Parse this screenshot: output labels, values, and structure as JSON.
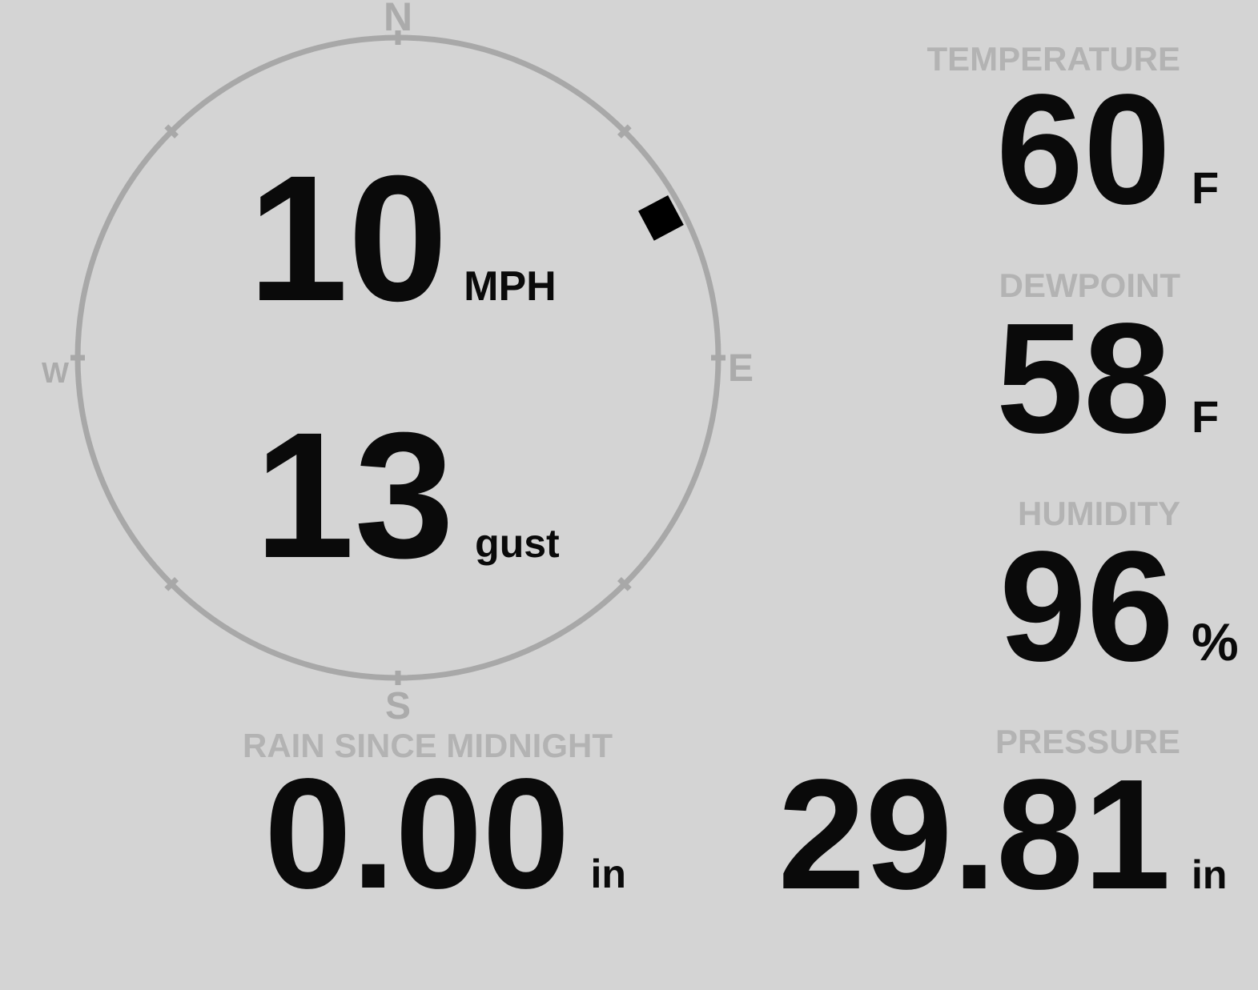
{
  "colors": {
    "background": "#d4d4d4",
    "section_label": "#b3b3b3",
    "cardinal_letter": "#ababab",
    "compass_ring": "#a8a8a8",
    "value_text": "#0a0a0a",
    "wind_marker": "#000000"
  },
  "wind_gauge": {
    "cardinals": {
      "north": "N",
      "east": "E",
      "south": "S",
      "west": "W"
    },
    "speed": {
      "value": "10",
      "unit": "MPH"
    },
    "gust": {
      "value": "13",
      "unit": "gust"
    },
    "direction_degrees": 62
  },
  "metrics": [
    {
      "label": "TEMPERATURE",
      "value": "60",
      "unit": "F"
    },
    {
      "label": "DEWPOINT",
      "value": "58",
      "unit": "F"
    },
    {
      "label": "HUMIDITY",
      "value": "96",
      "unit": "%"
    },
    {
      "label": "PRESSURE",
      "value": "29.81",
      "unit": "in"
    }
  ],
  "rain": {
    "label": "RAIN SINCE MIDNIGHT",
    "value": "0.00",
    "unit": "in"
  }
}
